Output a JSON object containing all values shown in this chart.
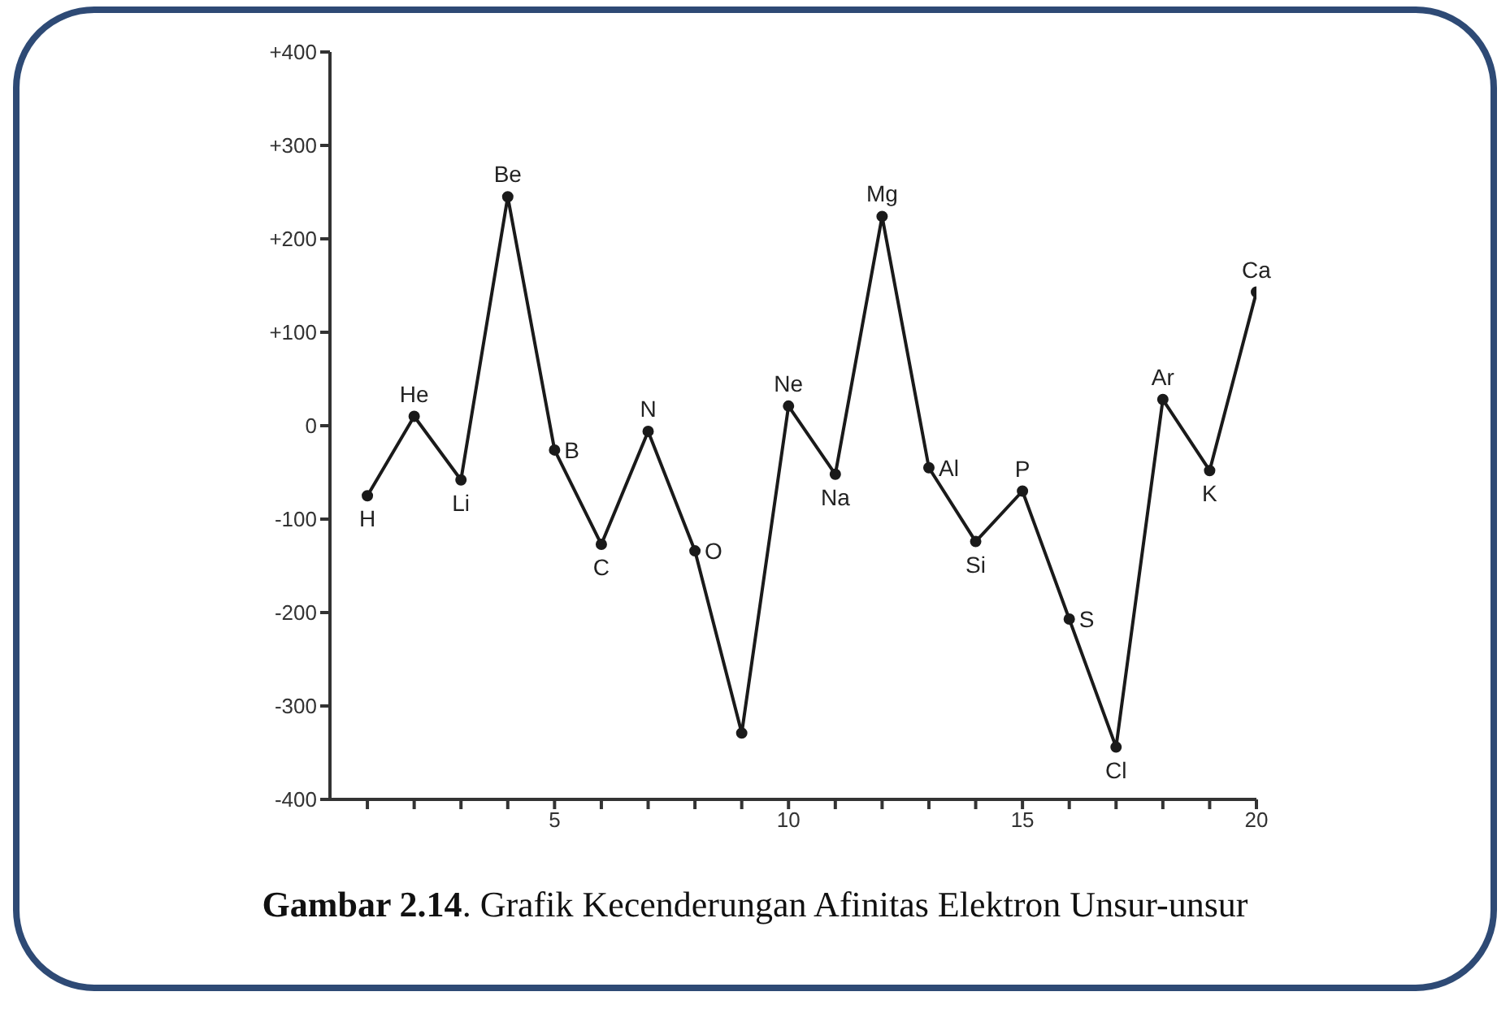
{
  "chart_data": {
    "type": "line",
    "title": "Gambar 2.14. Grafik Kecenderungan Afinitas Elektron Unsur-unsur",
    "x": [
      1,
      2,
      3,
      4,
      5,
      6,
      7,
      8,
      9,
      10,
      11,
      12,
      13,
      14,
      15,
      16,
      17,
      18,
      19,
      20
    ],
    "series": [
      {
        "color": "#1a1a1a",
        "values": [
          -75,
          10,
          -58,
          245,
          -26,
          -127,
          -6,
          -134,
          -329,
          21,
          -52,
          224,
          -45,
          -124,
          -70,
          -207,
          -344,
          28,
          -48,
          143
        ]
      }
    ],
    "xlim": [
      0.2,
      20
    ],
    "xticks": [
      {
        "value": 1,
        "label": null
      },
      {
        "value": 2,
        "label": null
      },
      {
        "value": 3,
        "label": null
      },
      {
        "value": 4,
        "label": null
      },
      5,
      {
        "value": 6,
        "label": null
      },
      {
        "value": 7,
        "label": null
      },
      {
        "value": 8,
        "label": null
      },
      {
        "value": 9,
        "label": null
      },
      10,
      {
        "value": 11,
        "label": null
      },
      {
        "value": 12,
        "label": null
      },
      {
        "value": 13,
        "label": null
      },
      {
        "value": 14,
        "label": null
      },
      15,
      {
        "value": 16,
        "label": null
      },
      {
        "value": 17,
        "label": null
      },
      {
        "value": 18,
        "label": null
      },
      {
        "value": 19,
        "label": null
      },
      20
    ],
    "ylim": [
      -400,
      400
    ],
    "yticks": [
      -400,
      -300,
      -200,
      -100,
      0,
      {
        "value": 100,
        "label": "+100"
      },
      {
        "value": 200,
        "label": "+200"
      },
      {
        "value": 300,
        "label": "+300"
      },
      {
        "value": 400,
        "label": "+400"
      }
    ],
    "marker": "circle",
    "line_style": "solid",
    "grid": false,
    "annotations": [
      {
        "text": "H",
        "x": 1,
        "y": -75
      },
      {
        "text": "He",
        "x": 2,
        "y": 10
      },
      {
        "text": "Li",
        "x": 3,
        "y": -58
      },
      {
        "text": "Be",
        "x": 4,
        "y": 245
      },
      {
        "text": "B",
        "x": 5,
        "y": -26
      },
      {
        "text": "C",
        "x": 6,
        "y": -127
      },
      {
        "text": "N",
        "x": 7,
        "y": -6
      },
      {
        "text": "O",
        "x": 8,
        "y": -134
      },
      {
        "text": "Ne",
        "x": 10,
        "y": 21
      },
      {
        "text": "Na",
        "x": 11,
        "y": -52
      },
      {
        "text": "Mg",
        "x": 12,
        "y": 224
      },
      {
        "text": "Al",
        "x": 13,
        "y": -45
      },
      {
        "text": "Si",
        "x": 14,
        "y": -124
      },
      {
        "text": "P",
        "x": 15,
        "y": -70
      },
      {
        "text": "S",
        "x": 16,
        "y": -207
      },
      {
        "text": "Cl",
        "x": 17,
        "y": -344
      },
      {
        "text": "Ar",
        "x": 18,
        "y": 28
      },
      {
        "text": "K",
        "x": 19,
        "y": -48
      },
      {
        "text": "Ca",
        "x": 20,
        "y": 143
      }
    ]
  }
}
